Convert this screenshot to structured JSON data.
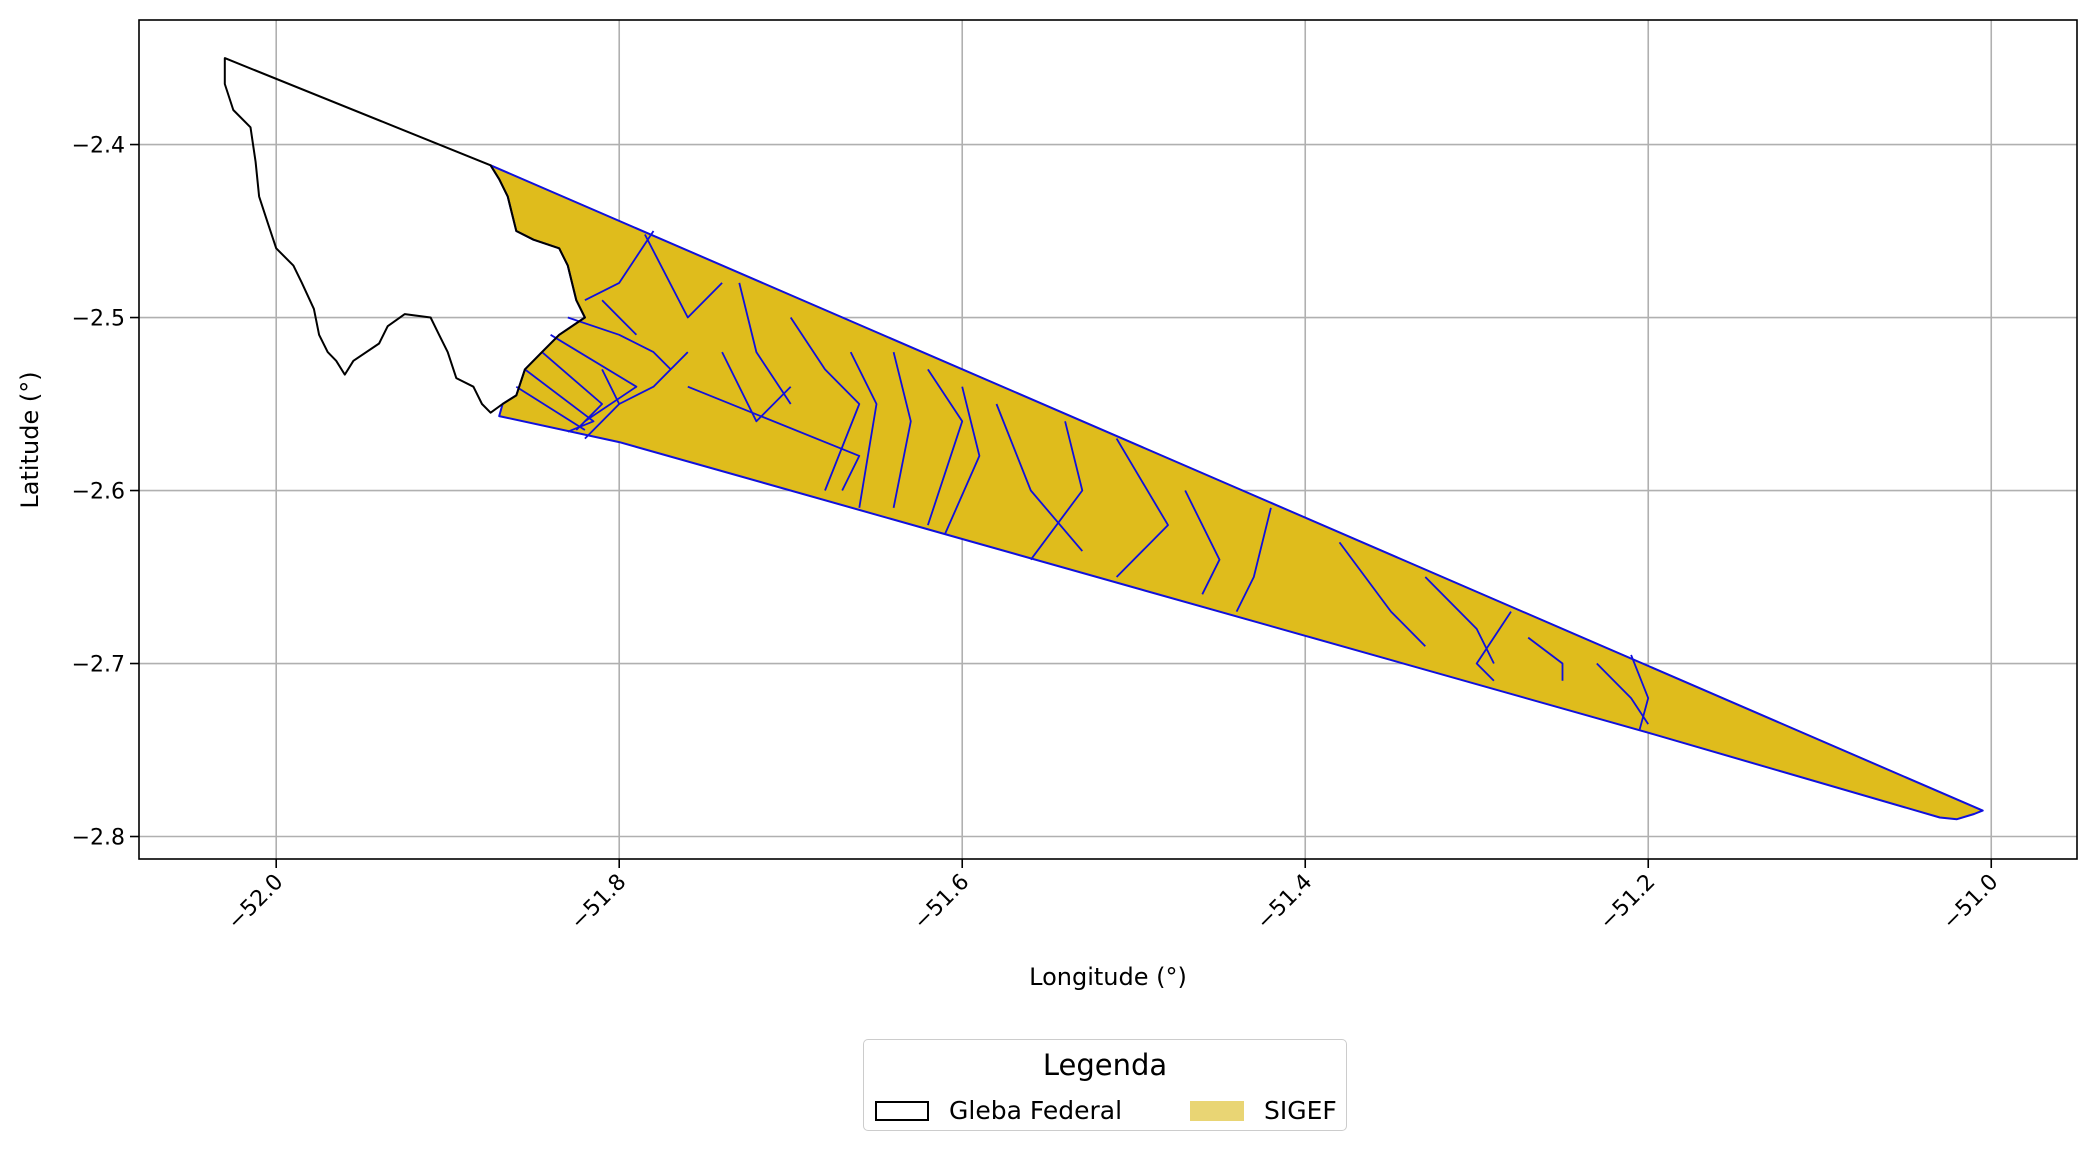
{
  "map": {
    "x_axis": {
      "label": "Longitude (°)",
      "range": [
        -52.08,
        -50.95
      ],
      "ticks": [
        {
          "value": -52.0,
          "label": "−52.0"
        },
        {
          "value": -51.8,
          "label": "−51.8"
        },
        {
          "value": -51.6,
          "label": "−51.6"
        },
        {
          "value": -51.4,
          "label": "−51.4"
        },
        {
          "value": -51.2,
          "label": "−51.2"
        },
        {
          "value": -51.0,
          "label": "−51.0"
        }
      ]
    },
    "y_axis": {
      "label": "Latitude (°)",
      "range": [
        -2.813,
        -2.328
      ],
      "ticks": [
        {
          "value": -2.4,
          "label": "−2.4"
        },
        {
          "value": -2.5,
          "label": "−2.5"
        },
        {
          "value": -2.6,
          "label": "−2.6"
        },
        {
          "value": -2.7,
          "label": "−2.7"
        },
        {
          "value": -2.8,
          "label": "−2.8"
        }
      ]
    },
    "grid": true,
    "layers": {
      "gleba_federal": {
        "name": "Gleba Federal",
        "edge_color": "#000000",
        "fill": "none",
        "outline": [
          [
            -52.03,
            -2.35
          ],
          [
            -51.875,
            -2.412
          ],
          [
            -51.87,
            -2.42
          ],
          [
            -51.865,
            -2.43
          ],
          [
            -51.86,
            -2.45
          ],
          [
            -51.85,
            -2.455
          ],
          [
            -51.835,
            -2.46
          ],
          [
            -51.83,
            -2.47
          ],
          [
            -51.825,
            -2.49
          ],
          [
            -51.82,
            -2.5
          ],
          [
            -51.835,
            -2.51
          ],
          [
            -51.845,
            -2.52
          ],
          [
            -51.855,
            -2.53
          ],
          [
            -51.86,
            -2.545
          ],
          [
            -51.868,
            -2.55
          ],
          [
            -51.875,
            -2.555
          ],
          [
            -51.88,
            -2.55
          ],
          [
            -51.885,
            -2.54
          ],
          [
            -51.895,
            -2.535
          ],
          [
            -51.9,
            -2.52
          ],
          [
            -51.905,
            -2.51
          ],
          [
            -51.91,
            -2.5
          ],
          [
            -51.925,
            -2.498
          ],
          [
            -51.935,
            -2.505
          ],
          [
            -51.94,
            -2.515
          ],
          [
            -51.955,
            -2.525
          ],
          [
            -51.96,
            -2.533
          ],
          [
            -51.965,
            -2.525
          ],
          [
            -51.97,
            -2.52
          ],
          [
            -51.975,
            -2.51
          ],
          [
            -51.978,
            -2.495
          ],
          [
            -51.985,
            -2.48
          ],
          [
            -51.99,
            -2.47
          ],
          [
            -52.0,
            -2.46
          ],
          [
            -52.005,
            -2.445
          ],
          [
            -52.01,
            -2.43
          ],
          [
            -52.012,
            -2.41
          ],
          [
            -52.015,
            -2.39
          ],
          [
            -52.025,
            -2.38
          ],
          [
            -52.03,
            -2.365
          ],
          [
            -52.03,
            -2.35
          ]
        ]
      },
      "sigef": {
        "name": "SIGEF",
        "fill_color": "#dfbc1c",
        "legend_fill_color": "#e9d574",
        "edge_color": "#1010dd",
        "outline": [
          [
            -51.875,
            -2.412
          ],
          [
            -51.005,
            -2.785
          ],
          [
            -51.01,
            -2.787
          ],
          [
            -51.02,
            -2.79
          ],
          [
            -51.03,
            -2.789
          ],
          [
            -51.2,
            -2.74
          ],
          [
            -51.4,
            -2.684
          ],
          [
            -51.6,
            -2.628
          ],
          [
            -51.8,
            -2.572
          ],
          [
            -51.87,
            -2.557
          ],
          [
            -51.868,
            -2.55
          ],
          [
            -51.86,
            -2.545
          ],
          [
            -51.855,
            -2.53
          ],
          [
            -51.845,
            -2.52
          ],
          [
            -51.835,
            -2.51
          ],
          [
            -51.82,
            -2.5
          ],
          [
            -51.825,
            -2.49
          ],
          [
            -51.83,
            -2.47
          ],
          [
            -51.835,
            -2.46
          ],
          [
            -51.85,
            -2.455
          ],
          [
            -51.86,
            -2.45
          ],
          [
            -51.865,
            -2.43
          ],
          [
            -51.87,
            -2.42
          ],
          [
            -51.875,
            -2.412
          ]
        ],
        "parcels": [
          [
            [
              -51.78,
              -2.45
            ],
            [
              -51.8,
              -2.48
            ],
            [
              -51.82,
              -2.49
            ]
          ],
          [
            [
              -51.785,
              -2.452
            ],
            [
              -51.76,
              -2.5
            ],
            [
              -51.74,
              -2.48
            ]
          ],
          [
            [
              -51.81,
              -2.49
            ],
            [
              -51.8,
              -2.5
            ],
            [
              -51.79,
              -2.51
            ]
          ],
          [
            [
              -51.83,
              -2.5
            ],
            [
              -51.8,
              -2.51
            ],
            [
              -51.78,
              -2.52
            ],
            [
              -51.77,
              -2.53
            ]
          ],
          [
            [
              -51.84,
              -2.51
            ],
            [
              -51.79,
              -2.54
            ],
            [
              -51.82,
              -2.56
            ]
          ],
          [
            [
              -51.845,
              -2.52
            ],
            [
              -51.81,
              -2.55
            ],
            [
              -51.825,
              -2.565
            ]
          ],
          [
            [
              -51.855,
              -2.53
            ],
            [
              -51.815,
              -2.56
            ],
            [
              -51.83,
              -2.566
            ]
          ],
          [
            [
              -51.86,
              -2.54
            ],
            [
              -51.82,
              -2.565
            ]
          ],
          [
            [
              -51.81,
              -2.53
            ],
            [
              -51.8,
              -2.55
            ],
            [
              -51.82,
              -2.57
            ]
          ],
          [
            [
              -51.76,
              -2.52
            ],
            [
              -51.78,
              -2.54
            ],
            [
              -51.8,
              -2.55
            ]
          ],
          [
            [
              -51.76,
              -2.54
            ],
            [
              -51.66,
              -2.58
            ],
            [
              -51.67,
              -2.6
            ]
          ],
          [
            [
              -51.74,
              -2.52
            ],
            [
              -51.72,
              -2.56
            ],
            [
              -51.7,
              -2.54
            ]
          ],
          [
            [
              -51.73,
              -2.48
            ],
            [
              -51.72,
              -2.52
            ],
            [
              -51.7,
              -2.55
            ]
          ],
          [
            [
              -51.7,
              -2.5
            ],
            [
              -51.68,
              -2.53
            ],
            [
              -51.66,
              -2.55
            ],
            [
              -51.68,
              -2.6
            ]
          ],
          [
            [
              -51.665,
              -2.52
            ],
            [
              -51.65,
              -2.55
            ],
            [
              -51.66,
              -2.61
            ]
          ],
          [
            [
              -51.64,
              -2.52
            ],
            [
              -51.63,
              -2.56
            ],
            [
              -51.64,
              -2.61
            ]
          ],
          [
            [
              -51.62,
              -2.53
            ],
            [
              -51.6,
              -2.56
            ],
            [
              -51.62,
              -2.62
            ]
          ],
          [
            [
              -51.6,
              -2.54
            ],
            [
              -51.59,
              -2.58
            ],
            [
              -51.61,
              -2.625
            ]
          ],
          [
            [
              -51.58,
              -2.55
            ],
            [
              -51.56,
              -2.6
            ],
            [
              -51.53,
              -2.635
            ]
          ],
          [
            [
              -51.54,
              -2.56
            ],
            [
              -51.53,
              -2.6
            ],
            [
              -51.56,
              -2.64
            ]
          ],
          [
            [
              -51.51,
              -2.57
            ],
            [
              -51.48,
              -2.62
            ],
            [
              -51.51,
              -2.65
            ]
          ],
          [
            [
              -51.47,
              -2.6
            ],
            [
              -51.45,
              -2.64
            ],
            [
              -51.46,
              -2.66
            ]
          ],
          [
            [
              -51.42,
              -2.61
            ],
            [
              -51.43,
              -2.65
            ],
            [
              -51.44,
              -2.67
            ]
          ],
          [
            [
              -51.38,
              -2.63
            ],
            [
              -51.35,
              -2.67
            ],
            [
              -51.33,
              -2.69
            ]
          ],
          [
            [
              -51.33,
              -2.65
            ],
            [
              -51.3,
              -2.68
            ],
            [
              -51.29,
              -2.7
            ]
          ],
          [
            [
              -51.28,
              -2.67
            ],
            [
              -51.3,
              -2.7
            ],
            [
              -51.29,
              -2.71
            ]
          ],
          [
            [
              -51.27,
              -2.685
            ],
            [
              -51.25,
              -2.7
            ],
            [
              -51.25,
              -2.71
            ]
          ],
          [
            [
              -51.23,
              -2.7
            ],
            [
              -51.21,
              -2.72
            ],
            [
              -51.2,
              -2.735
            ]
          ],
          [
            [
              -51.21,
              -2.695
            ],
            [
              -51.2,
              -2.72
            ],
            [
              -51.205,
              -2.738
            ]
          ]
        ]
      }
    }
  },
  "legend": {
    "title": "Legenda",
    "items": [
      {
        "label": "Gleba Federal"
      },
      {
        "label": "SIGEF"
      }
    ]
  }
}
